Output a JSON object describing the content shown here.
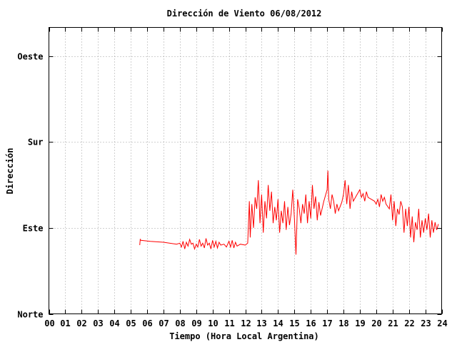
{
  "chart_data": {
    "type": "line",
    "title": "Dirección de Viento 06/08/2012",
    "xlabel": "Tiempo (Hora Local Argentina)",
    "ylabel": "Dirección",
    "xlim": [
      0,
      24
    ],
    "ylim": [
      0,
      300
    ],
    "grid": true,
    "legend": "none",
    "x_ticks": [
      {
        "value": 0,
        "label": "00"
      },
      {
        "value": 1,
        "label": "01"
      },
      {
        "value": 2,
        "label": "02"
      },
      {
        "value": 3,
        "label": "03"
      },
      {
        "value": 4,
        "label": "04"
      },
      {
        "value": 5,
        "label": "05"
      },
      {
        "value": 6,
        "label": "06"
      },
      {
        "value": 7,
        "label": "07"
      },
      {
        "value": 8,
        "label": "08"
      },
      {
        "value": 9,
        "label": "09"
      },
      {
        "value": 10,
        "label": "10"
      },
      {
        "value": 11,
        "label": "11"
      },
      {
        "value": 12,
        "label": "12"
      },
      {
        "value": 13,
        "label": "13"
      },
      {
        "value": 14,
        "label": "14"
      },
      {
        "value": 15,
        "label": "15"
      },
      {
        "value": 16,
        "label": "16"
      },
      {
        "value": 17,
        "label": "17"
      },
      {
        "value": 18,
        "label": "18"
      },
      {
        "value": 19,
        "label": "19"
      },
      {
        "value": 20,
        "label": "20"
      },
      {
        "value": 21,
        "label": "21"
      },
      {
        "value": 22,
        "label": "22"
      },
      {
        "value": 23,
        "label": "23"
      },
      {
        "value": 24,
        "label": "24"
      }
    ],
    "y_ticks": [
      {
        "value": 0,
        "label": "Norte"
      },
      {
        "value": 90,
        "label": "Este"
      },
      {
        "value": 180,
        "label": "Sur"
      },
      {
        "value": 270,
        "label": "Oeste"
      }
    ],
    "series": [
      {
        "color": "#ff0000",
        "points": [
          [
            5.55,
            72
          ],
          [
            5.58,
            78
          ],
          [
            5.62,
            77
          ],
          [
            6.2,
            76
          ],
          [
            7.0,
            75
          ],
          [
            7.8,
            73
          ],
          [
            8.0,
            74
          ],
          [
            8.1,
            70
          ],
          [
            8.2,
            76
          ],
          [
            8.3,
            68
          ],
          [
            8.4,
            75
          ],
          [
            8.5,
            71
          ],
          [
            8.6,
            78
          ],
          [
            8.7,
            73
          ],
          [
            8.8,
            74
          ],
          [
            8.9,
            68
          ],
          [
            9.0,
            73
          ],
          [
            9.1,
            70
          ],
          [
            9.2,
            78
          ],
          [
            9.3,
            71
          ],
          [
            9.4,
            74
          ],
          [
            9.5,
            69
          ],
          [
            9.6,
            79
          ],
          [
            9.7,
            72
          ],
          [
            9.8,
            74
          ],
          [
            9.9,
            68
          ],
          [
            10.0,
            77
          ],
          [
            10.1,
            70
          ],
          [
            10.2,
            76
          ],
          [
            10.3,
            69
          ],
          [
            10.4,
            75
          ],
          [
            10.5,
            72
          ],
          [
            10.7,
            73
          ],
          [
            10.85,
            70
          ],
          [
            11.0,
            76
          ],
          [
            11.1,
            70
          ],
          [
            11.2,
            77
          ],
          [
            11.3,
            69
          ],
          [
            11.4,
            75
          ],
          [
            11.5,
            71
          ],
          [
            11.7,
            73
          ],
          [
            12.0,
            72
          ],
          [
            12.15,
            74
          ],
          [
            12.25,
            118
          ],
          [
            12.3,
            80
          ],
          [
            12.4,
            115
          ],
          [
            12.5,
            90
          ],
          [
            12.6,
            122
          ],
          [
            12.7,
            110
          ],
          [
            12.8,
            140
          ],
          [
            12.9,
            95
          ],
          [
            13.0,
            125
          ],
          [
            13.1,
            85
          ],
          [
            13.2,
            118
          ],
          [
            13.3,
            100
          ],
          [
            13.4,
            135
          ],
          [
            13.5,
            108
          ],
          [
            13.6,
            128
          ],
          [
            13.7,
            95
          ],
          [
            13.8,
            112
          ],
          [
            13.9,
            98
          ],
          [
            14.0,
            120
          ],
          [
            14.1,
            85
          ],
          [
            14.2,
            108
          ],
          [
            14.3,
            95
          ],
          [
            14.4,
            118
          ],
          [
            14.5,
            88
          ],
          [
            14.6,
            112
          ],
          [
            14.7,
            93
          ],
          [
            14.8,
            105
          ],
          [
            14.9,
            130
          ],
          [
            15.0,
            100
          ],
          [
            15.1,
            62
          ],
          [
            15.2,
            120
          ],
          [
            15.3,
            110
          ],
          [
            15.4,
            95
          ],
          [
            15.5,
            115
          ],
          [
            15.6,
            105
          ],
          [
            15.7,
            125
          ],
          [
            15.8,
            95
          ],
          [
            15.9,
            118
          ],
          [
            16.0,
            100
          ],
          [
            16.1,
            135
          ],
          [
            16.2,
            110
          ],
          [
            16.3,
            123
          ],
          [
            16.4,
            98
          ],
          [
            16.5,
            117
          ],
          [
            16.6,
            103
          ],
          [
            16.8,
            118
          ],
          [
            17.0,
            130
          ],
          [
            17.05,
            150
          ],
          [
            17.1,
            120
          ],
          [
            17.2,
            110
          ],
          [
            17.3,
            125
          ],
          [
            17.4,
            118
          ],
          [
            17.5,
            105
          ],
          [
            17.6,
            115
          ],
          [
            17.7,
            108
          ],
          [
            17.9,
            117
          ],
          [
            18.0,
            125
          ],
          [
            18.1,
            140
          ],
          [
            18.2,
            115
          ],
          [
            18.3,
            135
          ],
          [
            18.4,
            110
          ],
          [
            18.5,
            128
          ],
          [
            18.6,
            118
          ],
          [
            18.8,
            124
          ],
          [
            19.0,
            130
          ],
          [
            19.1,
            122
          ],
          [
            19.2,
            126
          ],
          [
            19.3,
            118
          ],
          [
            19.4,
            128
          ],
          [
            19.5,
            122
          ],
          [
            19.7,
            120
          ],
          [
            19.9,
            118
          ],
          [
            20.0,
            115
          ],
          [
            20.1,
            120
          ],
          [
            20.2,
            112
          ],
          [
            20.3,
            125
          ],
          [
            20.4,
            118
          ],
          [
            20.5,
            122
          ],
          [
            20.6,
            115
          ],
          [
            20.8,
            110
          ],
          [
            20.9,
            125
          ],
          [
            21.0,
            98
          ],
          [
            21.1,
            118
          ],
          [
            21.2,
            92
          ],
          [
            21.3,
            110
          ],
          [
            21.4,
            104
          ],
          [
            21.5,
            118
          ],
          [
            21.6,
            112
          ],
          [
            21.7,
            85
          ],
          [
            21.8,
            110
          ],
          [
            21.9,
            92
          ],
          [
            22.0,
            112
          ],
          [
            22.1,
            80
          ],
          [
            22.2,
            102
          ],
          [
            22.3,
            75
          ],
          [
            22.4,
            96
          ],
          [
            22.5,
            88
          ],
          [
            22.6,
            110
          ],
          [
            22.7,
            80
          ],
          [
            22.8,
            98
          ],
          [
            22.9,
            85
          ],
          [
            23.0,
            100
          ],
          [
            23.1,
            88
          ],
          [
            23.2,
            105
          ],
          [
            23.3,
            80
          ],
          [
            23.4,
            98
          ],
          [
            23.5,
            85
          ],
          [
            23.6,
            96
          ],
          [
            23.7,
            88
          ],
          [
            23.8,
            94
          ]
        ]
      }
    ]
  }
}
